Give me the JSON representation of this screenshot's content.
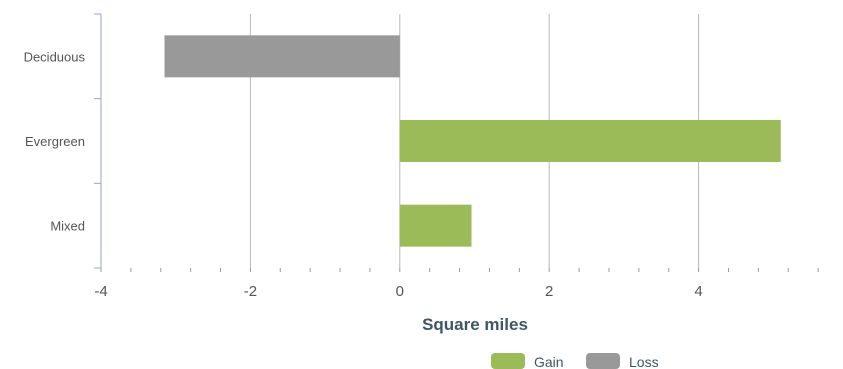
{
  "chart_data": {
    "type": "bar",
    "orientation": "horizontal",
    "categories": [
      "Deciduous",
      "Evergreen",
      "Mixed"
    ],
    "series": [
      {
        "name": "Gain",
        "color": "#9bbb59",
        "values": [
          null,
          5.1,
          0.96
        ]
      },
      {
        "name": "Loss",
        "color": "#999999",
        "values": [
          -3.15,
          null,
          null
        ]
      }
    ],
    "title": "",
    "xlabel": "Square miles",
    "ylabel": "",
    "xlim": [
      -4,
      6
    ],
    "x_ticks": [
      "-4",
      "-2",
      "0",
      "2",
      "4",
      "6"
    ],
    "grid": "vertical",
    "legend": "bottom-right"
  }
}
